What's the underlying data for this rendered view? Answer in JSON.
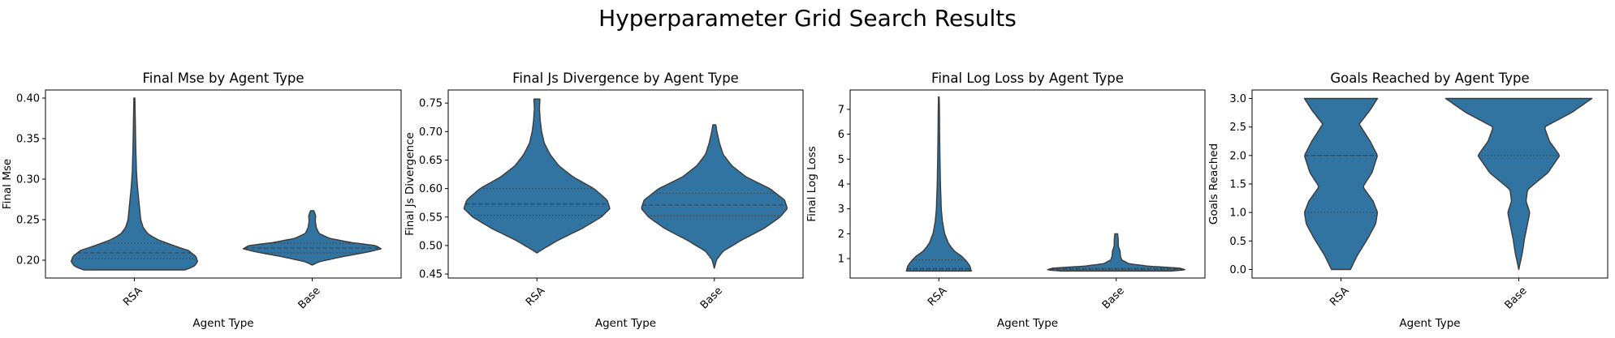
{
  "figure": {
    "title": "Hyperparameter Grid Search Results"
  },
  "colors": {
    "violin_fill": "#3274a1",
    "violin_edge": "#3a3a3a",
    "quartile_line": "#3a3a3a"
  },
  "chart_data": [
    {
      "type": "violin",
      "title": "Final Mse by Agent Type",
      "xlabel": "Agent Type",
      "ylabel": "Final Mse",
      "categories": [
        "RSA",
        "Base"
      ],
      "ylim": [
        0.178,
        0.41
      ],
      "yticks": [
        0.2,
        0.25,
        0.3,
        0.35,
        0.4
      ],
      "ytick_labels": [
        "0.20",
        "0.25",
        "0.30",
        "0.35",
        "0.40"
      ],
      "grid": false,
      "violins": [
        {
          "category": "RSA",
          "quartiles": [
            0.202,
            0.209,
            0.221
          ],
          "profile": [
            [
              0.188,
              0.8
            ],
            [
              0.192,
              0.94
            ],
            [
              0.198,
              1.0
            ],
            [
              0.205,
              0.97
            ],
            [
              0.212,
              0.85
            ],
            [
              0.218,
              0.62
            ],
            [
              0.225,
              0.38
            ],
            [
              0.232,
              0.22
            ],
            [
              0.24,
              0.14
            ],
            [
              0.25,
              0.1
            ],
            [
              0.27,
              0.075
            ],
            [
              0.29,
              0.05
            ],
            [
              0.31,
              0.032
            ],
            [
              0.34,
              0.022
            ],
            [
              0.37,
              0.015
            ],
            [
              0.4,
              0.008
            ]
          ]
        },
        {
          "category": "Base",
          "quartiles": [
            0.209,
            0.215,
            0.221
          ],
          "profile": [
            [
              0.194,
              0.0
            ],
            [
              0.198,
              0.1
            ],
            [
              0.204,
              0.42
            ],
            [
              0.21,
              0.8
            ],
            [
              0.214,
              1.0
            ],
            [
              0.218,
              0.92
            ],
            [
              0.222,
              0.55
            ],
            [
              0.227,
              0.25
            ],
            [
              0.233,
              0.1
            ],
            [
              0.24,
              0.06
            ],
            [
              0.248,
              0.045
            ],
            [
              0.255,
              0.05
            ],
            [
              0.261,
              0.025
            ]
          ]
        }
      ]
    },
    {
      "type": "violin",
      "title": "Final Js Divergence by Agent Type",
      "xlabel": "Agent Type",
      "ylabel": "Final Js Divergence",
      "categories": [
        "RSA",
        "Base"
      ],
      "ylim": [
        0.443,
        0.773
      ],
      "yticks": [
        0.45,
        0.5,
        0.55,
        0.6,
        0.65,
        0.7,
        0.75
      ],
      "ytick_labels": [
        "0.45",
        "0.50",
        "0.55",
        "0.60",
        "0.65",
        "0.70",
        "0.75"
      ],
      "grid": false,
      "violins": [
        {
          "category": "RSA",
          "quartiles": [
            0.553,
            0.573,
            0.6
          ],
          "profile": [
            [
              0.487,
              0.0
            ],
            [
              0.495,
              0.1
            ],
            [
              0.51,
              0.3
            ],
            [
              0.53,
              0.62
            ],
            [
              0.55,
              0.88
            ],
            [
              0.565,
              1.0
            ],
            [
              0.58,
              0.96
            ],
            [
              0.6,
              0.78
            ],
            [
              0.62,
              0.5
            ],
            [
              0.64,
              0.3
            ],
            [
              0.66,
              0.18
            ],
            [
              0.68,
              0.1
            ],
            [
              0.7,
              0.065
            ],
            [
              0.72,
              0.045
            ],
            [
              0.74,
              0.035
            ],
            [
              0.757,
              0.04
            ]
          ]
        },
        {
          "category": "Base",
          "quartiles": [
            0.552,
            0.571,
            0.592
          ],
          "profile": [
            [
              0.46,
              0.0
            ],
            [
              0.475,
              0.03
            ],
            [
              0.49,
              0.12
            ],
            [
              0.51,
              0.38
            ],
            [
              0.53,
              0.68
            ],
            [
              0.55,
              0.9
            ],
            [
              0.565,
              1.0
            ],
            [
              0.58,
              0.96
            ],
            [
              0.6,
              0.76
            ],
            [
              0.62,
              0.44
            ],
            [
              0.64,
              0.24
            ],
            [
              0.66,
              0.12
            ],
            [
              0.68,
              0.07
            ],
            [
              0.7,
              0.035
            ],
            [
              0.712,
              0.02
            ]
          ]
        }
      ]
    },
    {
      "type": "violin",
      "title": "Final Log Loss by Agent Type",
      "xlabel": "Agent Type",
      "ylabel": "Final Log Loss",
      "categories": [
        "RSA",
        "Base"
      ],
      "ylim": [
        0.22,
        7.78
      ],
      "yticks": [
        1,
        2,
        3,
        4,
        5,
        6,
        7
      ],
      "ytick_labels": [
        "1",
        "2",
        "3",
        "4",
        "5",
        "6",
        "7"
      ],
      "grid": false,
      "violins": [
        {
          "category": "RSA",
          "quartiles": [
            0.55,
            0.6,
            0.95
          ],
          "profile": [
            [
              0.5,
              1.0
            ],
            [
              0.7,
              0.96
            ],
            [
              0.9,
              0.85
            ],
            [
              1.1,
              0.7
            ],
            [
              1.3,
              0.48
            ],
            [
              1.6,
              0.3
            ],
            [
              2.0,
              0.18
            ],
            [
              2.5,
              0.11
            ],
            [
              3.0,
              0.075
            ],
            [
              4.0,
              0.05
            ],
            [
              5.0,
              0.035
            ],
            [
              6.0,
              0.025
            ],
            [
              7.0,
              0.018
            ],
            [
              7.5,
              0.01
            ]
          ]
        },
        {
          "category": "Base",
          "quartiles": [
            0.55,
            0.58,
            0.62
          ],
          "profile": [
            [
              0.5,
              0.8
            ],
            [
              0.55,
              1.0
            ],
            [
              0.62,
              0.92
            ],
            [
              0.7,
              0.45
            ],
            [
              0.8,
              0.18
            ],
            [
              0.95,
              0.08
            ],
            [
              1.1,
              0.06
            ],
            [
              1.3,
              0.055
            ],
            [
              1.5,
              0.03
            ],
            [
              1.8,
              0.028
            ],
            [
              2.0,
              0.02
            ]
          ]
        }
      ]
    },
    {
      "type": "violin",
      "title": "Goals Reached by Agent Type",
      "xlabel": "Agent Type",
      "ylabel": "Goals Reached",
      "categories": [
        "RSA",
        "Base"
      ],
      "ylim": [
        -0.15,
        3.15
      ],
      "yticks": [
        0.0,
        0.5,
        1.0,
        1.5,
        2.0,
        2.5,
        3.0
      ],
      "ytick_labels": [
        "0.0",
        "0.5",
        "1.0",
        "1.5",
        "2.0",
        "2.5",
        "3.0"
      ],
      "grid": false,
      "violins": [
        {
          "category": "RSA",
          "quartiles": [
            1.0,
            2.0,
            2.0
          ],
          "profile": [
            [
              0.0,
              0.26
            ],
            [
              0.25,
              0.45
            ],
            [
              0.55,
              0.74
            ],
            [
              0.8,
              0.95
            ],
            [
              1.0,
              1.0
            ],
            [
              1.2,
              0.88
            ],
            [
              1.45,
              0.6
            ],
            [
              1.7,
              0.85
            ],
            [
              2.0,
              1.0
            ],
            [
              2.25,
              0.8
            ],
            [
              2.55,
              0.5
            ],
            [
              2.8,
              0.8
            ],
            [
              3.0,
              1.0
            ]
          ]
        },
        {
          "category": "Base",
          "quartiles": [
            2.0,
            3.0,
            3.0
          ],
          "profile": [
            [
              0.0,
              0.0
            ],
            [
              0.3,
              0.05
            ],
            [
              0.55,
              0.08
            ],
            [
              0.8,
              0.12
            ],
            [
              1.0,
              0.15
            ],
            [
              1.2,
              0.1
            ],
            [
              1.4,
              0.12
            ],
            [
              1.7,
              0.4
            ],
            [
              2.0,
              0.56
            ],
            [
              2.25,
              0.42
            ],
            [
              2.5,
              0.35
            ],
            [
              2.75,
              0.72
            ],
            [
              3.0,
              1.0
            ]
          ]
        }
      ]
    }
  ]
}
